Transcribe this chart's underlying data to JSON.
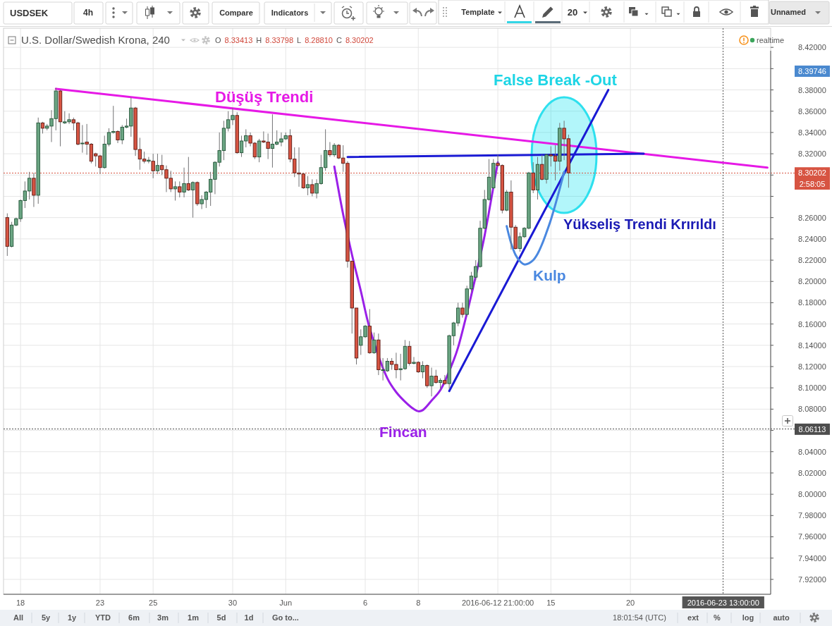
{
  "chart_data": {
    "type": "candlestick",
    "title": "U.S. Dollar/Swedish Krona, 240",
    "subtitle": "O 8.33413 H 8.33798 L 8.28810 C 8.30202",
    "categories": [
      null,
      null,
      null,
      "18",
      null,
      null,
      null,
      null,
      null,
      null,
      null,
      null,
      null,
      null,
      null,
      null,
      null,
      null,
      null,
      null,
      null,
      "23",
      null,
      null,
      null,
      null,
      null,
      null,
      null,
      null,
      null,
      null,
      null,
      "25",
      null,
      null,
      null,
      null,
      null,
      null,
      null,
      null,
      null,
      null,
      null,
      null,
      null,
      null,
      null,
      null,
      null,
      "30",
      null,
      null,
      null,
      null,
      null,
      null,
      null,
      null,
      null,
      null,
      null,
      "Jun",
      null,
      null,
      null,
      null,
      null,
      null,
      null,
      null,
      null,
      null,
      null,
      null,
      null,
      null,
      null,
      null,
      null,
      "6",
      null,
      null,
      null,
      null,
      null,
      null,
      null,
      null,
      null,
      null,
      null,
      "8",
      null,
      null,
      null,
      null,
      null,
      null,
      null,
      null,
      null,
      null,
      null,
      null,
      null,
      null,
      null,
      null,
      null,
      "2016-06-12 21:00:00",
      null,
      null,
      null,
      null,
      null,
      null,
      null,
      null,
      null,
      null,
      null,
      "15",
      null,
      null,
      null,
      null,
      null,
      null,
      null,
      null,
      null,
      null,
      null,
      null,
      null,
      null,
      null,
      null,
      null,
      "20",
      null,
      null,
      null,
      null,
      null,
      null,
      null,
      null,
      null,
      null,
      null,
      null,
      null,
      null,
      null,
      null,
      null,
      null,
      null,
      null,
      "2016-06-23 13:00:00",
      null,
      null,
      null,
      null,
      null,
      null,
      null,
      null,
      null,
      null
    ],
    "ohlc": [
      [
        8.26,
        8.264,
        8.224,
        8.233
      ],
      [
        8.233,
        8.256,
        8.232,
        8.253
      ],
      [
        8.253,
        8.26,
        8.252,
        8.259
      ],
      [
        8.259,
        8.277,
        8.256,
        8.276
      ],
      [
        8.276,
        8.294,
        8.269,
        8.285
      ],
      [
        8.285,
        8.303,
        8.277,
        8.297
      ],
      [
        8.297,
        8.302,
        8.27,
        8.281
      ],
      [
        8.281,
        8.354,
        8.273,
        8.349
      ],
      [
        8.349,
        8.35,
        8.339,
        8.344
      ],
      [
        8.344,
        8.348,
        8.342,
        8.346
      ],
      [
        8.346,
        8.361,
        8.331,
        8.353
      ],
      [
        8.353,
        8.382,
        8.342,
        8.379
      ],
      [
        8.379,
        8.38,
        8.327,
        8.35
      ],
      [
        8.349,
        8.36,
        8.348,
        8.35
      ],
      [
        8.35,
        8.358,
        8.348,
        8.352
      ],
      [
        8.352,
        8.354,
        8.342,
        8.349
      ],
      [
        8.349,
        8.35,
        8.328,
        8.329
      ],
      [
        8.33,
        8.347,
        8.321,
        8.33
      ],
      [
        8.331,
        8.348,
        8.319,
        8.329
      ],
      [
        8.329,
        8.33,
        8.311,
        8.313
      ],
      [
        8.32,
        8.321,
        8.308,
        8.318
      ],
      [
        8.318,
        8.319,
        8.301,
        8.307
      ],
      [
        8.307,
        8.337,
        8.306,
        8.329
      ],
      [
        8.329,
        8.344,
        8.327,
        8.34
      ],
      [
        8.34,
        8.365,
        8.339,
        8.341
      ],
      [
        8.341,
        8.342,
        8.33,
        8.333
      ],
      [
        8.333,
        8.347,
        8.329,
        8.345
      ],
      [
        8.345,
        8.353,
        8.344,
        8.346
      ],
      [
        8.346,
        8.373,
        8.336,
        8.363
      ],
      [
        8.363,
        8.364,
        8.318,
        8.324
      ],
      [
        8.324,
        8.335,
        8.305,
        8.315
      ],
      [
        8.315,
        8.322,
        8.311,
        8.313
      ],
      [
        8.313,
        8.317,
        8.311,
        8.314
      ],
      [
        8.313,
        8.32,
        8.297,
        8.304
      ],
      [
        8.304,
        8.32,
        8.301,
        8.309
      ],
      [
        8.309,
        8.319,
        8.3,
        8.305
      ],
      [
        8.305,
        8.309,
        8.284,
        8.297
      ],
      [
        8.297,
        8.304,
        8.284,
        8.287
      ],
      [
        8.287,
        8.294,
        8.276,
        8.289
      ],
      [
        8.289,
        8.294,
        8.279,
        8.284
      ],
      [
        8.284,
        8.307,
        8.279,
        8.292
      ],
      [
        8.292,
        8.317,
        8.285,
        8.286
      ],
      [
        8.286,
        8.294,
        8.26,
        8.293
      ],
      [
        8.293,
        8.294,
        8.271,
        8.273
      ],
      [
        8.273,
        8.281,
        8.268,
        8.277
      ],
      [
        8.277,
        8.285,
        8.269,
        8.284
      ],
      [
        8.284,
        8.303,
        8.271,
        8.296
      ],
      [
        8.296,
        8.313,
        8.282,
        8.312
      ],
      [
        8.312,
        8.34,
        8.308,
        8.323
      ],
      [
        8.323,
        8.351,
        8.314,
        8.344
      ],
      [
        8.344,
        8.36,
        8.341,
        8.352
      ],
      [
        8.352,
        8.363,
        8.347,
        8.356
      ],
      [
        8.356,
        8.359,
        8.32,
        8.321
      ],
      [
        8.321,
        8.337,
        8.317,
        8.332
      ],
      [
        8.332,
        8.343,
        8.326,
        8.337
      ],
      [
        8.337,
        8.34,
        8.327,
        8.33
      ],
      [
        8.33,
        8.331,
        8.315,
        8.317
      ],
      [
        8.317,
        8.334,
        8.312,
        8.332
      ],
      [
        8.332,
        8.341,
        8.33,
        8.331
      ],
      [
        8.331,
        8.339,
        8.315,
        8.325
      ],
      [
        8.325,
        8.357,
        8.307,
        8.329
      ],
      [
        8.329,
        8.342,
        8.328,
        8.331
      ],
      [
        8.331,
        8.34,
        8.327,
        8.334
      ],
      [
        8.334,
        8.34,
        8.333,
        8.337
      ],
      [
        8.337,
        8.343,
        8.312,
        8.315
      ],
      [
        8.315,
        8.326,
        8.298,
        8.302
      ],
      [
        8.302,
        8.326,
        8.289,
        8.301
      ],
      [
        8.301,
        8.302,
        8.287,
        8.288
      ],
      [
        8.288,
        8.299,
        8.281,
        8.291
      ],
      [
        8.291,
        8.296,
        8.28,
        8.283
      ],
      [
        8.283,
        8.296,
        8.278,
        8.292
      ],
      [
        8.292,
        8.319,
        8.291,
        8.307
      ],
      [
        8.307,
        8.343,
        8.304,
        8.323
      ],
      [
        8.323,
        8.331,
        8.317,
        8.319
      ],
      [
        8.319,
        8.33,
        8.317,
        8.328
      ],
      [
        8.328,
        8.329,
        8.315,
        8.316
      ],
      [
        8.316,
        8.328,
        8.303,
        8.311
      ],
      [
        8.311,
        8.313,
        8.213,
        8.219
      ],
      [
        8.219,
        8.219,
        8.151,
        8.175
      ],
      [
        8.175,
        8.175,
        8.122,
        8.128
      ],
      [
        8.14,
        8.155,
        8.131,
        8.148
      ],
      [
        8.148,
        8.159,
        8.147,
        8.158
      ],
      [
        8.158,
        8.174,
        8.132,
        8.133
      ],
      [
        8.133,
        8.152,
        8.132,
        8.145
      ],
      [
        8.145,
        8.151,
        8.112,
        8.117
      ],
      [
        8.117,
        8.128,
        8.107,
        8.117
      ],
      [
        8.116,
        8.128,
        8.115,
        8.125
      ],
      [
        8.125,
        8.128,
        8.117,
        8.122
      ],
      [
        8.122,
        8.133,
        8.109,
        8.117
      ],
      [
        8.117,
        8.132,
        8.107,
        8.118
      ],
      [
        8.118,
        8.145,
        8.117,
        8.139
      ],
      [
        8.139,
        8.144,
        8.121,
        8.123
      ],
      [
        8.123,
        8.129,
        8.122,
        8.124
      ],
      [
        8.124,
        8.125,
        8.114,
        8.115
      ],
      [
        8.115,
        8.125,
        8.109,
        8.121
      ],
      [
        8.121,
        8.122,
        8.1,
        8.102
      ],
      [
        8.102,
        8.119,
        8.092,
        8.111
      ],
      [
        8.111,
        8.117,
        8.104,
        8.105
      ],
      [
        8.105,
        8.109,
        8.098,
        8.107
      ],
      [
        8.107,
        8.112,
        8.103,
        8.104
      ],
      [
        8.104,
        8.15,
        8.099,
        8.149
      ],
      [
        8.149,
        8.162,
        8.14,
        8.161
      ],
      [
        8.161,
        8.18,
        8.158,
        8.175
      ],
      [
        8.175,
        8.18,
        8.166,
        8.169
      ],
      [
        8.169,
        8.196,
        8.167,
        8.193
      ],
      [
        8.193,
        8.209,
        8.19,
        8.205
      ],
      [
        8.204,
        8.22,
        8.201,
        8.214
      ],
      [
        8.214,
        8.257,
        8.213,
        8.25
      ],
      [
        8.25,
        8.286,
        8.249,
        8.277
      ],
      [
        8.277,
        8.315,
        8.276,
        8.298
      ],
      [
        8.288,
        8.315,
        8.287,
        8.311
      ],
      [
        8.311,
        8.319,
        8.308,
        8.309
      ],
      [
        8.309,
        8.31,
        8.264,
        8.267
      ],
      [
        8.267,
        8.286,
        8.266,
        8.284
      ],
      [
        8.284,
        8.295,
        8.23,
        8.251
      ],
      [
        8.251,
        8.253,
        8.23,
        8.231
      ],
      [
        8.231,
        8.246,
        8.228,
        8.242
      ],
      [
        8.242,
        8.251,
        8.241,
        8.25
      ],
      [
        8.25,
        8.303,
        8.249,
        8.302
      ],
      [
        8.302,
        8.312,
        8.283,
        8.286
      ],
      [
        8.286,
        8.317,
        8.277,
        8.31
      ],
      [
        8.31,
        8.319,
        8.295,
        8.296
      ],
      [
        8.296,
        8.32,
        8.292,
        8.319
      ],
      [
        8.319,
        8.327,
        8.308,
        8.318
      ],
      [
        8.318,
        8.328,
        8.295,
        8.313
      ],
      [
        8.313,
        8.349,
        8.304,
        8.344
      ],
      [
        8.344,
        8.351,
        8.314,
        8.334
      ],
      [
        8.33413,
        8.33798,
        8.2881,
        8.30202
      ],
      null,
      null,
      null,
      null,
      null,
      null,
      null,
      null,
      null,
      null,
      null,
      null,
      null,
      null,
      null,
      null,
      null,
      null,
      null,
      null,
      null,
      null,
      null,
      null,
      null,
      null,
      null,
      null,
      null,
      null,
      null,
      null,
      null,
      null,
      null,
      null,
      null,
      null,
      null,
      null,
      null,
      null,
      null,
      null,
      null
    ],
    "series": [
      {
        "type": "line",
        "color": "#e619e6",
        "values": [
          null,
          null,
          null,
          null,
          null,
          null,
          null,
          null,
          null,
          null,
          null,
          8.381,
          null,
          null,
          null,
          null,
          null,
          null,
          null,
          null,
          null,
          null,
          null,
          null,
          null,
          null,
          null,
          null,
          null,
          null,
          null,
          null,
          null,
          null,
          null,
          null,
          null,
          null,
          null,
          null,
          null,
          null,
          null,
          null,
          null,
          null,
          null,
          null,
          null,
          null,
          null,
          null,
          null,
          null,
          null,
          null,
          null,
          null,
          null,
          null,
          null,
          null,
          null,
          null,
          null,
          null,
          null,
          null,
          null,
          null,
          null,
          null,
          null,
          null,
          null,
          null,
          null,
          null,
          null,
          null,
          null,
          null,
          null,
          null,
          null,
          null,
          null,
          null,
          null,
          null,
          null,
          null,
          null,
          null,
          null,
          null,
          null,
          null,
          null,
          null,
          null,
          null,
          null,
          null,
          null,
          null,
          null,
          null,
          null,
          null,
          null,
          null,
          null,
          null,
          null,
          null,
          null,
          null,
          null,
          null,
          null,
          null,
          null,
          null,
          null,
          null,
          null,
          null,
          null,
          null,
          null,
          null,
          null,
          null,
          null,
          null,
          null,
          null,
          null,
          null,
          null,
          null,
          null,
          null,
          null,
          null,
          null,
          null,
          null,
          null,
          null,
          null,
          null,
          null,
          null,
          null,
          null,
          null,
          null,
          null,
          null,
          null,
          null,
          null,
          null,
          null,
          null,
          null,
          null,
          null,
          null,
          null,
          8.307
        ]
      },
      {
        "type": "line",
        "color": "#1a1ad4",
        "values": [
          null,
          null,
          null,
          null,
          null,
          null,
          null,
          null,
          null,
          null,
          null,
          null,
          null,
          null,
          null,
          null,
          null,
          null,
          null,
          null,
          null,
          null,
          null,
          null,
          null,
          null,
          null,
          null,
          null,
          null,
          null,
          null,
          null,
          null,
          null,
          null,
          null,
          null,
          null,
          null,
          null,
          null,
          null,
          null,
          null,
          null,
          null,
          null,
          null,
          null,
          null,
          null,
          null,
          null,
          null,
          null,
          null,
          null,
          null,
          null,
          null,
          null,
          null,
          null,
          null,
          null,
          null,
          null,
          null,
          null,
          null,
          null,
          null,
          null,
          null,
          null,
          null,
          8.317,
          null,
          null,
          null,
          null,
          null,
          null,
          null,
          null,
          null,
          null,
          null,
          null,
          null,
          null,
          null,
          null,
          null,
          null,
          null,
          null,
          null,
          null,
          null,
          null,
          null,
          null,
          null,
          null,
          null,
          null,
          null,
          null,
          null,
          null,
          null,
          null,
          null,
          null,
          null,
          null,
          null,
          null,
          null,
          null,
          null,
          null,
          null,
          null,
          null,
          null,
          null,
          null,
          null,
          null,
          null,
          null,
          null,
          null,
          null,
          null,
          null,
          null,
          null,
          null,
          null,
          null,
          8.32,
          null,
          null,
          null,
          null,
          null,
          null,
          null,
          null,
          null,
          null,
          null,
          null,
          null,
          null,
          null,
          null,
          null,
          null,
          null,
          null,
          null,
          null,
          null,
          null,
          null,
          null,
          null,
          null
        ]
      },
      {
        "type": "line",
        "color": "#1a1ad4",
        "values": [
          null,
          null,
          null,
          null,
          null,
          null,
          null,
          null,
          null,
          null,
          null,
          null,
          null,
          null,
          null,
          null,
          null,
          null,
          null,
          null,
          null,
          null,
          null,
          null,
          null,
          null,
          null,
          null,
          null,
          null,
          null,
          null,
          null,
          null,
          null,
          null,
          null,
          null,
          null,
          null,
          null,
          null,
          null,
          null,
          null,
          null,
          null,
          null,
          null,
          null,
          null,
          null,
          null,
          null,
          null,
          null,
          null,
          null,
          null,
          null,
          null,
          null,
          null,
          null,
          null,
          null,
          null,
          null,
          null,
          null,
          null,
          null,
          null,
          null,
          null,
          null,
          null,
          null,
          null,
          null,
          null,
          null,
          null,
          null,
          null,
          null,
          null,
          null,
          null,
          null,
          null,
          null,
          null,
          null,
          null,
          null,
          null,
          null,
          null,
          null,
          8.097,
          null,
          null,
          null,
          null,
          null,
          null,
          null,
          null,
          null,
          null,
          null,
          null,
          null,
          null,
          null,
          null,
          null,
          null,
          null,
          null,
          null,
          null,
          null,
          null,
          null,
          null,
          null,
          null,
          null,
          null,
          null,
          null,
          null,
          null,
          null,
          8.38,
          null,
          null,
          null,
          null,
          null,
          null,
          null,
          null,
          null,
          null,
          null,
          null,
          null,
          null,
          null,
          null,
          null,
          null,
          null,
          null,
          null,
          null,
          null,
          null,
          null,
          null,
          null,
          null,
          null,
          null,
          null,
          null,
          null,
          null,
          null,
          null
        ]
      },
      {
        "type": "line",
        "color": "#9a20e8",
        "values": [
          null,
          null,
          null,
          null,
          null,
          null,
          null,
          null,
          null,
          null,
          null,
          null,
          null,
          null,
          null,
          null,
          null,
          null,
          null,
          null,
          null,
          null,
          null,
          null,
          null,
          null,
          null,
          null,
          null,
          null,
          null,
          null,
          null,
          null,
          null,
          null,
          null,
          null,
          null,
          null,
          null,
          null,
          null,
          null,
          null,
          null,
          null,
          null,
          null,
          null,
          null,
          null,
          null,
          null,
          null,
          null,
          null,
          null,
          null,
          null,
          null,
          null,
          null,
          null,
          null,
          null,
          null,
          null,
          null,
          null,
          null,
          null,
          null,
          null,
          8.308,
          null,
          8.263,
          null,
          8.225,
          null,
          8.191,
          null,
          8.156,
          null,
          null,
          null,
          8.109,
          null,
          8.096,
          null,
          8.087,
          null,
          8.08,
          8.078,
          8.079,
          null,
          8.088,
          null,
          8.098,
          null,
          null,
          8.126,
          8.138,
          null,
          8.17,
          null,
          8.205,
          null,
          8.243,
          null,
          8.289,
          8.312,
          null,
          null,
          null,
          null,
          null,
          null,
          null,
          null,
          null,
          null,
          null,
          null,
          null,
          null,
          null,
          null,
          null,
          null,
          null,
          null,
          null,
          null,
          null,
          null,
          null,
          null,
          null,
          null,
          null,
          null,
          null,
          null,
          null,
          null,
          null,
          null,
          null,
          null,
          null,
          null,
          null,
          null,
          null,
          null,
          null,
          null,
          null,
          null,
          null,
          null,
          null,
          null,
          null,
          null,
          null,
          null,
          null,
          null,
          null,
          null,
          null
        ]
      },
      {
        "type": "line",
        "color": "#4a88e0",
        "values": [
          null,
          null,
          null,
          null,
          null,
          null,
          null,
          null,
          null,
          null,
          null,
          null,
          null,
          null,
          null,
          null,
          null,
          null,
          null,
          null,
          null,
          null,
          null,
          null,
          null,
          null,
          null,
          null,
          null,
          null,
          null,
          null,
          null,
          null,
          null,
          null,
          null,
          null,
          null,
          null,
          null,
          null,
          null,
          null,
          null,
          null,
          null,
          null,
          null,
          null,
          null,
          null,
          null,
          null,
          null,
          null,
          null,
          null,
          null,
          null,
          null,
          null,
          null,
          null,
          null,
          null,
          null,
          null,
          null,
          null,
          null,
          null,
          null,
          null,
          null,
          null,
          null,
          null,
          null,
          null,
          null,
          null,
          null,
          null,
          null,
          null,
          null,
          null,
          null,
          null,
          null,
          null,
          null,
          null,
          null,
          null,
          null,
          null,
          null,
          null,
          null,
          null,
          null,
          null,
          null,
          null,
          null,
          null,
          null,
          null,
          null,
          null,
          null,
          8.252,
          8.236,
          8.225,
          8.219,
          8.216,
          8.217,
          8.22,
          8.226,
          8.235,
          8.246,
          8.258,
          8.272,
          8.287,
          8.303,
          null,
          null,
          null,
          null,
          null,
          null,
          null,
          null,
          null,
          null,
          null,
          null,
          null,
          null,
          null,
          null,
          null,
          null,
          null,
          null,
          null,
          null,
          null,
          null,
          null,
          null,
          null,
          null,
          null,
          null,
          null,
          null,
          null,
          null,
          null,
          null,
          null,
          null,
          null,
          null,
          null,
          null,
          null,
          null,
          null,
          null
        ]
      }
    ],
    "ylim": [
      7.906,
      8.438
    ],
    "yticks": [
      {
        "value": 8.42,
        "label": "8.42000"
      },
      {
        "value": 8.4,
        "label": null
      },
      {
        "value": 8.38,
        "label": "8.38000"
      },
      {
        "value": 8.36,
        "label": "8.36000"
      },
      {
        "value": 8.34,
        "label": "8.34000"
      },
      {
        "value": 8.32,
        "label": "8.32000"
      },
      {
        "value": 8.3,
        "label": null
      },
      {
        "value": 8.28,
        "label": null
      },
      {
        "value": 8.26,
        "label": "8.26000"
      },
      {
        "value": 8.24,
        "label": "8.24000"
      },
      {
        "value": 8.22,
        "label": "8.22000"
      },
      {
        "value": 8.2,
        "label": "8.20000"
      },
      {
        "value": 8.18,
        "label": "8.18000"
      },
      {
        "value": 8.16,
        "label": "8.16000"
      },
      {
        "value": 8.14,
        "label": "8.14000"
      },
      {
        "value": 8.12,
        "label": "8.12000"
      },
      {
        "value": 8.1,
        "label": "8.10000"
      },
      {
        "value": 8.08,
        "label": "8.08000"
      },
      {
        "value": 8.06,
        "label": null
      },
      {
        "value": 8.04,
        "label": "8.04000"
      },
      {
        "value": 8.02,
        "label": "8.02000"
      },
      {
        "value": 8.0,
        "label": "8.00000"
      },
      {
        "value": 7.98,
        "label": "7.98000"
      },
      {
        "value": 7.96,
        "label": "7.96000"
      },
      {
        "value": 7.94,
        "label": "7.94000"
      },
      {
        "value": 7.92,
        "label": "7.92000"
      }
    ],
    "grid": true,
    "ref_lines": [
      {
        "axis": "y",
        "value": 8.30202,
        "label": "8.30202",
        "color": "#d75442",
        "line_style": "dotted"
      },
      {
        "axis": "y",
        "value": 8.06113,
        "label": "8.06113",
        "color": "#4d4d4d",
        "line_style": "dotted"
      },
      {
        "axis": "x",
        "value": "2016-06-23 13:00:00",
        "color": "#555555",
        "line_style": "dotted"
      }
    ],
    "annotations": [
      "USDSEK",
      "4h",
      "Compare",
      "Indicators",
      "Template",
      "20",
      "Unnamed",
      "realtime",
      "2:58:05",
      "Düşüş Trendi",
      "Yükseliş Trendi Krırıldı",
      "Kulp",
      "Fincan",
      "False Break -Out",
      "8.39746",
      "All",
      "5y",
      "1y",
      "YTD",
      "6m",
      "3m",
      "1m",
      "5d",
      "1d",
      "Go to...",
      "18:01:54 (UTC)",
      "ext",
      "%",
      "log",
      "auto"
    ]
  }
}
